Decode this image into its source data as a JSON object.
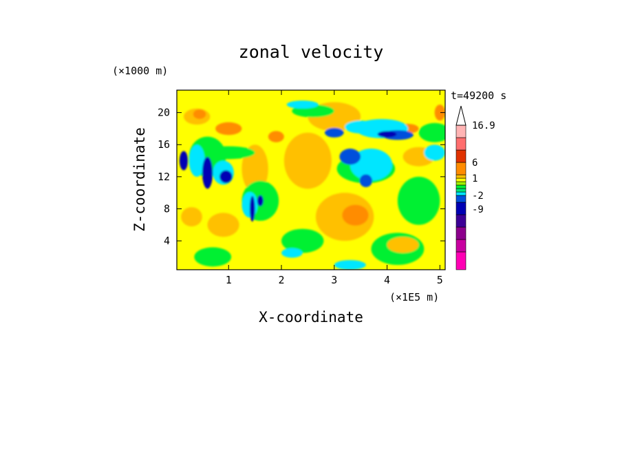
{
  "chart_data": {
    "type": "heatmap",
    "title": "zonal velocity",
    "xlabel": "X-coordinate",
    "ylabel": "Z-coordinate",
    "x_unit": "(×1E5 m)",
    "y_unit": "(×1000 m)",
    "time_label": "t=49200 s",
    "xlim": [
      0.02,
      5.1
    ],
    "ylim": [
      0.4,
      22.8
    ],
    "x_ticks": [
      "1",
      "2",
      "3",
      "4",
      "5"
    ],
    "y_ticks": [
      "4",
      "8",
      "12",
      "16",
      "20"
    ],
    "colorbar": {
      "labels": [
        "16.9",
        "6",
        "1",
        "-2",
        "-9"
      ],
      "bins": [
        {
          "color": "#ff00b4"
        },
        {
          "color": "#c800a0"
        },
        {
          "color": "#8c008c"
        },
        {
          "color": "#3c0096"
        },
        {
          "color": "#0000b4"
        },
        {
          "color": "#0050dc"
        },
        {
          "color": "#00e6ff"
        },
        {
          "color": "#00e678"
        },
        {
          "color": "#00f032"
        },
        {
          "color": "#a0f000"
        },
        {
          "color": "#ffff00"
        },
        {
          "color": "#ffc000"
        },
        {
          "color": "#ff8c00"
        },
        {
          "color": "#e03200"
        },
        {
          "color": "#ff6e6e"
        },
        {
          "color": "#ffb4b4"
        }
      ]
    },
    "background_color": "#ffff00",
    "blobs": [
      {
        "x": 3.2,
        "z": 7.0,
        "rx": 0.55,
        "rz": 3.0,
        "color": "#ffc000"
      },
      {
        "x": 3.4,
        "z": 7.2,
        "rx": 0.25,
        "rz": 1.3,
        "color": "#ff8c00"
      },
      {
        "x": 2.5,
        "z": 14.0,
        "rx": 0.45,
        "rz": 3.5,
        "color": "#ffc000"
      },
      {
        "x": 3.0,
        "z": 19.5,
        "rx": 0.5,
        "rz": 1.8,
        "color": "#ffc000"
      },
      {
        "x": 4.6,
        "z": 14.5,
        "rx": 0.3,
        "rz": 1.2,
        "color": "#ffc000"
      },
      {
        "x": 0.4,
        "z": 19.5,
        "rx": 0.25,
        "rz": 1.0,
        "color": "#ffc000"
      },
      {
        "x": 0.45,
        "z": 19.8,
        "rx": 0.12,
        "rz": 0.6,
        "color": "#ff8c00"
      },
      {
        "x": 1.0,
        "z": 18.0,
        "rx": 0.25,
        "rz": 0.8,
        "color": "#ff8c00"
      },
      {
        "x": 1.9,
        "z": 17.0,
        "rx": 0.15,
        "rz": 0.7,
        "color": "#ff8c00"
      },
      {
        "x": 4.4,
        "z": 18.0,
        "rx": 0.2,
        "rz": 0.6,
        "color": "#ff8c00"
      },
      {
        "x": 0.9,
        "z": 6.0,
        "rx": 0.3,
        "rz": 1.5,
        "color": "#ffc000"
      },
      {
        "x": 1.5,
        "z": 13.0,
        "rx": 0.25,
        "rz": 3.0,
        "color": "#ffc000"
      },
      {
        "x": 3.6,
        "z": 13.0,
        "rx": 0.55,
        "rz": 1.8,
        "color": "#00f032"
      },
      {
        "x": 4.6,
        "z": 9.0,
        "rx": 0.4,
        "rz": 3.0,
        "color": "#00f032"
      },
      {
        "x": 2.4,
        "z": 4.0,
        "rx": 0.4,
        "rz": 1.5,
        "color": "#00f032"
      },
      {
        "x": 4.2,
        "z": 3.0,
        "rx": 0.5,
        "rz": 2.0,
        "color": "#00f032"
      },
      {
        "x": 0.7,
        "z": 2.0,
        "rx": 0.35,
        "rz": 1.2,
        "color": "#00f032"
      },
      {
        "x": 1.6,
        "z": 9.0,
        "rx": 0.35,
        "rz": 2.5,
        "color": "#00f032"
      },
      {
        "x": 2.6,
        "z": 20.2,
        "rx": 0.4,
        "rz": 0.8,
        "color": "#00f032"
      },
      {
        "x": 1.0,
        "z": 15.0,
        "rx": 0.5,
        "rz": 0.8,
        "color": "#00f032"
      },
      {
        "x": 0.6,
        "z": 14.5,
        "rx": 0.35,
        "rz": 2.5,
        "color": "#00f032"
      },
      {
        "x": 4.9,
        "z": 17.5,
        "rx": 0.3,
        "rz": 1.2,
        "color": "#00f032"
      },
      {
        "x": 3.7,
        "z": 13.5,
        "rx": 0.4,
        "rz": 2.0,
        "color": "#00e6ff"
      },
      {
        "x": 3.9,
        "z": 18.0,
        "rx": 0.5,
        "rz": 1.2,
        "color": "#00e6ff"
      },
      {
        "x": 3.5,
        "z": 18.2,
        "rx": 0.3,
        "rz": 0.8,
        "color": "#00e6ff"
      },
      {
        "x": 4.9,
        "z": 15.0,
        "rx": 0.2,
        "rz": 1.0,
        "color": "#00e6ff"
      },
      {
        "x": 0.9,
        "z": 12.5,
        "rx": 0.2,
        "rz": 1.5,
        "color": "#00e6ff"
      },
      {
        "x": 0.4,
        "z": 14.0,
        "rx": 0.15,
        "rz": 2.0,
        "color": "#00e6ff"
      },
      {
        "x": 1.4,
        "z": 8.5,
        "rx": 0.15,
        "rz": 1.6,
        "color": "#00e6ff"
      },
      {
        "x": 2.4,
        "z": 21.0,
        "rx": 0.3,
        "rz": 0.5,
        "color": "#00e6ff"
      },
      {
        "x": 3.3,
        "z": 1.0,
        "rx": 0.3,
        "rz": 0.6,
        "color": "#00e6ff"
      },
      {
        "x": 2.2,
        "z": 2.5,
        "rx": 0.2,
        "rz": 0.6,
        "color": "#00e6ff"
      },
      {
        "x": 4.2,
        "z": 17.2,
        "rx": 0.3,
        "rz": 0.6,
        "color": "#0050dc"
      },
      {
        "x": 3.0,
        "z": 17.5,
        "rx": 0.18,
        "rz": 0.6,
        "color": "#0050dc"
      },
      {
        "x": 3.3,
        "z": 14.5,
        "rx": 0.2,
        "rz": 1.0,
        "color": "#0050dc"
      },
      {
        "x": 3.6,
        "z": 11.5,
        "rx": 0.12,
        "rz": 0.8,
        "color": "#0050dc"
      },
      {
        "x": 0.95,
        "z": 12.0,
        "rx": 0.12,
        "rz": 0.8,
        "color": "#0000b4"
      },
      {
        "x": 0.6,
        "z": 12.5,
        "rx": 0.1,
        "rz": 2.0,
        "color": "#0000b4"
      },
      {
        "x": 0.15,
        "z": 14.0,
        "rx": 0.08,
        "rz": 1.2,
        "color": "#0000b4"
      },
      {
        "x": 4.0,
        "z": 17.3,
        "rx": 0.18,
        "rz": 0.4,
        "color": "#0000b4"
      },
      {
        "x": 1.45,
        "z": 8.0,
        "rx": 0.05,
        "rz": 1.6,
        "color": "#0000b4"
      },
      {
        "x": 1.6,
        "z": 9.0,
        "rx": 0.06,
        "rz": 0.7,
        "color": "#0000b4"
      },
      {
        "x": 4.3,
        "z": 3.5,
        "rx": 0.3,
        "rz": 1.0,
        "color": "#ffc000"
      },
      {
        "x": 0.3,
        "z": 7.0,
        "rx": 0.2,
        "rz": 1.2,
        "color": "#ffc000"
      },
      {
        "x": 5.0,
        "z": 20.0,
        "rx": 0.1,
        "rz": 1.0,
        "color": "#ff8c00"
      }
    ]
  }
}
